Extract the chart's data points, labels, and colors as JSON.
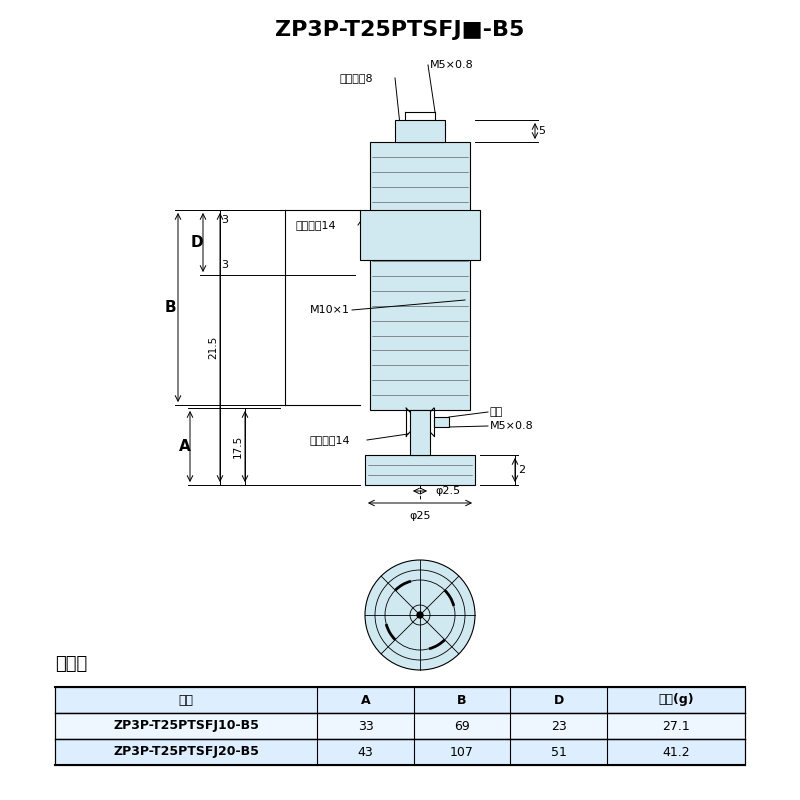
{
  "title": "ZP3P-T25PTSFJ■-B5",
  "bg_color": "#ffffff",
  "light_blue": "#d0e8f0",
  "table_header_bg": "#ddeeff",
  "table_row1_bg": "#eef6ff",
  "table_row2_bg": "#ddeeff",
  "table_title": "尺寸表",
  "table_headers": [
    "型号",
    "A",
    "B",
    "D",
    "质量(g)"
  ],
  "table_rows": [
    [
      "ZP3P-T25PTSFJ10-B5",
      "33",
      "69",
      "23",
      "27.1"
    ],
    [
      "ZP3P-T25PTSFJ20-B5",
      "43",
      "107",
      "51",
      "41.2"
    ]
  ],
  "labels": {
    "M5x0.8_top": "M5×0.8",
    "hex8": "六角对聱8",
    "hex14": "六角对聱14",
    "M10x1": "M10×1",
    "clamp14": "夹持面间14",
    "gasket": "垵片",
    "M5x0.8_bot": "M5×0.8",
    "phi2_5": "φ2.5",
    "phi25": "φ25",
    "dim_5": "5",
    "dim_2": "2",
    "dim_3a": "3",
    "dim_3b": "3",
    "dim_21_5": "21.5",
    "dim_17_5": "17.5",
    "dim_A": "A",
    "dim_B": "B",
    "dim_D": "D"
  }
}
